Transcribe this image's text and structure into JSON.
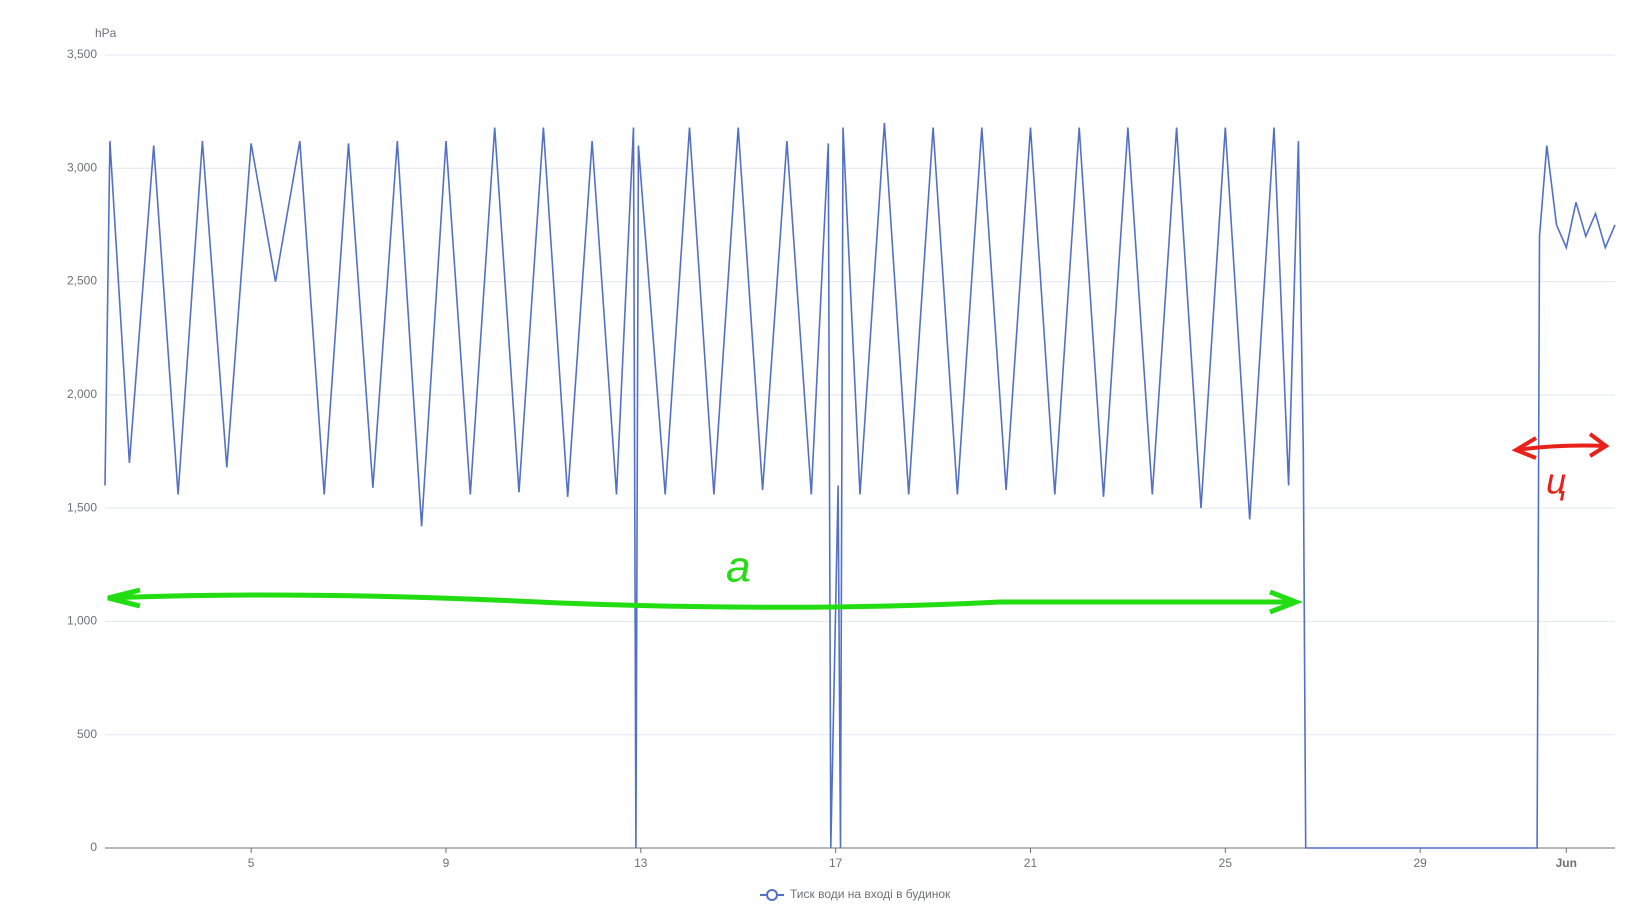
{
  "chart_data": {
    "type": "line",
    "y_unit": "hPa",
    "x": [
      2,
      2.1,
      2.5,
      3,
      3.5,
      4,
      4.5,
      5,
      5.5,
      6,
      6.5,
      7,
      7.5,
      8,
      8.5,
      9,
      9.5,
      10,
      10.5,
      11,
      11.5,
      12,
      12.5,
      12.85,
      12.9,
      12.95,
      13.5,
      14,
      14.5,
      15,
      15.5,
      16,
      16.5,
      16.85,
      16.9,
      17.05,
      17.1,
      17.15,
      17.5,
      18,
      18.5,
      19,
      19.5,
      20,
      20.5,
      21,
      21.5,
      22,
      22.5,
      23,
      23.5,
      24,
      24.5,
      25,
      25.5,
      26,
      26.3,
      26.5,
      26.6,
      26.65,
      31.4,
      31.45,
      31.6,
      31.8,
      32,
      32.2,
      32.4,
      32.6,
      32.8,
      33
    ],
    "series": [
      {
        "name": "Тиск води на вході в будинок",
        "color": "#5470c6",
        "values": [
          1600,
          3120,
          1700,
          3100,
          1560,
          3120,
          1680,
          3110,
          2500,
          3120,
          1560,
          3110,
          1590,
          3120,
          1420,
          3120,
          1560,
          3180,
          1570,
          3180,
          1550,
          3120,
          1560,
          3180,
          0,
          3100,
          1560,
          3180,
          1560,
          3180,
          1580,
          3120,
          1560,
          3110,
          0,
          1600,
          0,
          3180,
          1560,
          3200,
          1560,
          3180,
          1560,
          3180,
          1580,
          3180,
          1560,
          3180,
          1550,
          3180,
          1560,
          3180,
          1500,
          3180,
          1450,
          3180,
          1600,
          3120,
          1750,
          0,
          0,
          2700,
          3100,
          2750,
          2650,
          2850,
          2700,
          2800,
          2650,
          2750
        ]
      }
    ],
    "xlim": [
      2,
      33
    ],
    "xticks": [
      5,
      9,
      13,
      17,
      21,
      25,
      29,
      {
        "value": 32,
        "label": "Jun"
      }
    ],
    "ylim": [
      0,
      3500
    ],
    "yticks": [
      0,
      500,
      {
        "value": 1000,
        "label": "1,000"
      },
      {
        "value": 1500,
        "label": "1,500"
      },
      {
        "value": 2000,
        "label": "2,000"
      },
      {
        "value": 2500,
        "label": "2,500"
      },
      {
        "value": 3000,
        "label": "3,000"
      },
      {
        "value": 3500,
        "label": "3,500"
      }
    ],
    "grid": true,
    "annotations": [
      "a",
      "ц"
    ]
  }
}
